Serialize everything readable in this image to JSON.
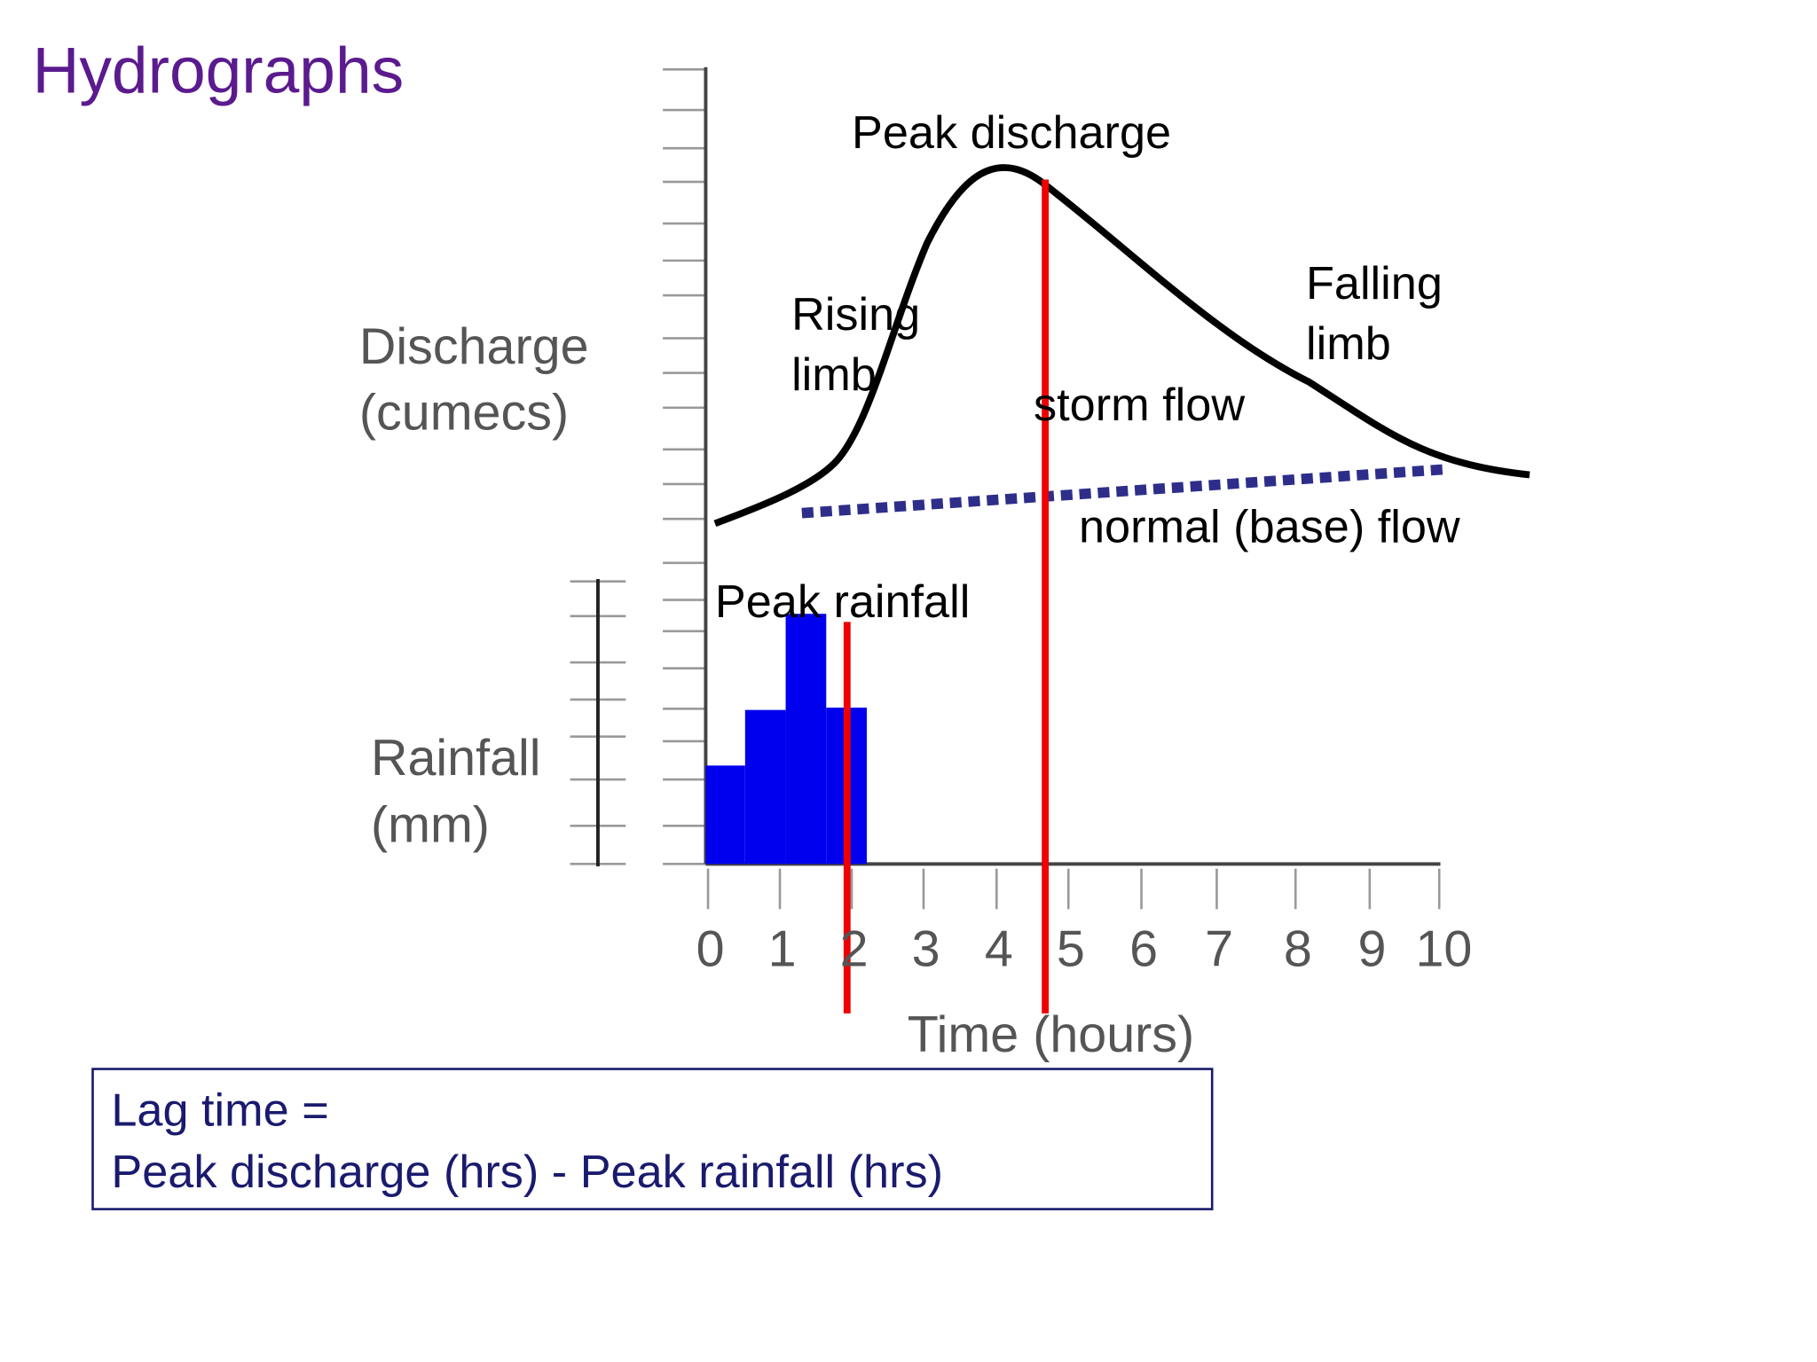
{
  "title": "Hydrographs",
  "axes": {
    "discharge_label": [
      "Discharge",
      "(cumecs)"
    ],
    "rainfall_label": [
      "Rainfall",
      "(mm)"
    ],
    "time_label": "Time (hours)",
    "time_ticks": [
      0,
      1,
      2,
      3,
      4,
      5,
      6,
      7,
      8,
      9,
      10
    ]
  },
  "annotations": {
    "peak_discharge": "Peak discharge",
    "rising_limb": [
      "Rising",
      "limb"
    ],
    "falling_limb": [
      "Falling",
      "limb"
    ],
    "storm_flow": "storm flow",
    "base_flow": "normal (base) flow",
    "peak_rainfall": "Peak rainfall"
  },
  "formula": [
    "Lag time =",
    "Peak discharge (hrs) - Peak rainfall (hrs)"
  ]
}
